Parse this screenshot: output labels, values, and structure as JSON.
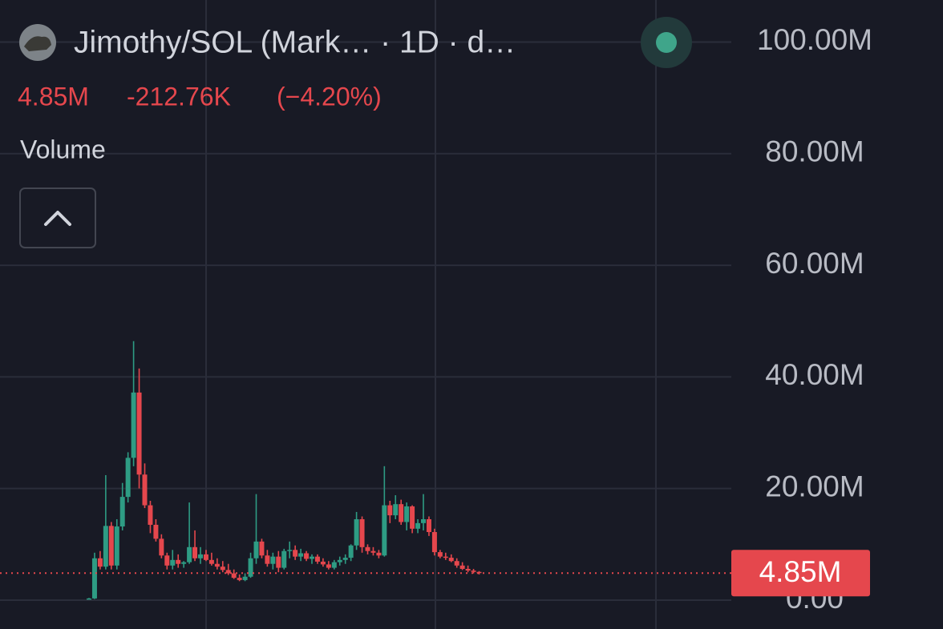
{
  "chart_data": {
    "type": "candlestick",
    "title": "Jimothy/SOL (Mark…  · 1D · d…",
    "last": {
      "value": 4.85,
      "label": "4.85M"
    },
    "change": "-212.76K",
    "change_percent": "(−4.20%)",
    "volume_label": "Volume",
    "up_color": "#2e9c84",
    "down_color": "#e5474d",
    "ylim": [
      -5.17,
      107.53
    ],
    "yticks": [
      {
        "value": 0,
        "label": "0.00"
      },
      {
        "value": 20,
        "label": "20.00M"
      },
      {
        "value": 40,
        "label": "40.00M"
      },
      {
        "value": 60,
        "label": "60.00M"
      },
      {
        "value": 80,
        "label": "80.00M"
      },
      {
        "value": 100,
        "label": "100.00M"
      }
    ],
    "grid": true,
    "open": [
      0.2,
      0.3,
      7.5,
      6.0,
      13.3,
      6.2,
      13.2,
      18.5,
      25.5,
      37.2,
      22.5,
      17,
      13.5,
      11,
      8,
      6.2,
      7.2,
      6.5,
      6.8,
      9.5,
      7.5,
      8.2,
      7.2,
      6.5,
      6,
      5.4,
      4.8,
      4,
      3.6,
      4.2,
      7.5,
      10.5,
      8,
      6.5,
      7.8,
      5.8,
      8.8,
      9,
      7.8,
      8.4,
      7.4,
      7.8,
      6.9,
      6.4,
      5.8,
      6.8,
      7.2,
      7.6,
      9.8,
      14.5,
      9.5,
      8.8,
      8.5,
      8,
      17,
      15.2,
      17.2,
      14,
      16.8,
      12.8,
      13.8,
      14.5,
      12.2,
      8.6,
      7.8,
      7.6,
      7,
      6.2,
      5.6,
      5.3,
      5.06
    ],
    "high": [
      0.4,
      8.5,
      8.8,
      22.4,
      14,
      14.5,
      21,
      26.5,
      46.4,
      41.5,
      24.5,
      17.8,
      14.5,
      11.8,
      8.5,
      9,
      8.2,
      7,
      17.5,
      12.5,
      9.5,
      9,
      8.5,
      7.5,
      7,
      6.5,
      5.5,
      4.6,
      4.8,
      8.5,
      19,
      11,
      9,
      8.5,
      8.8,
      9.2,
      10.5,
      9.8,
      9.2,
      8.8,
      8.2,
      8.2,
      7.5,
      7,
      7.2,
      7.8,
      8.2,
      10,
      15.8,
      15,
      10,
      9.5,
      9,
      24,
      17.8,
      18.8,
      18,
      17.5,
      17,
      14.5,
      19,
      15,
      12.8,
      9,
      8.5,
      8.2,
      7.5,
      6.8,
      6.2,
      5.6,
      5.2
    ],
    "low": [
      0.1,
      0.2,
      5.5,
      5.5,
      5.5,
      5.5,
      12.5,
      17.5,
      24,
      20,
      16.5,
      12,
      10.5,
      7.5,
      5.5,
      5.5,
      5.8,
      5.8,
      6.5,
      7,
      6.5,
      7,
      6.2,
      5.5,
      5,
      4.5,
      3.8,
      3.4,
      3.4,
      4,
      6.5,
      7.5,
      6,
      5.5,
      5,
      5.5,
      7.5,
      7.2,
      7,
      7,
      6.5,
      6.5,
      6,
      5.5,
      5.5,
      6.2,
      6.5,
      7,
      9,
      8.5,
      8.2,
      8,
      7.5,
      7.8,
      13.8,
      14.5,
      13.5,
      12.5,
      12,
      12,
      12.5,
      11.5,
      8,
      7.5,
      7.2,
      6.8,
      5.8,
      5.4,
      5,
      4.8,
      4.6
    ],
    "close": [
      0.3,
      7.5,
      6.0,
      13.3,
      6.2,
      13.2,
      18.5,
      25.5,
      37.2,
      22.5,
      17,
      13.5,
      11,
      8,
      6.2,
      7.2,
      6.5,
      6.8,
      9.5,
      7.5,
      8.2,
      7.2,
      6.5,
      6,
      5.4,
      4.8,
      4,
      3.6,
      4.2,
      7.5,
      10.5,
      8,
      6.5,
      7.8,
      5.8,
      8.8,
      9,
      7.8,
      8.4,
      7.4,
      7.8,
      6.9,
      6.4,
      5.8,
      6.8,
      7.2,
      7.6,
      9.8,
      14.5,
      9.5,
      8.8,
      8.5,
      8,
      17,
      15.2,
      17.2,
      14,
      16.8,
      12.8,
      13.8,
      14.5,
      12.2,
      8.6,
      7.8,
      7.6,
      7,
      6.2,
      5.6,
      5.3,
      5.06,
      4.85
    ]
  }
}
